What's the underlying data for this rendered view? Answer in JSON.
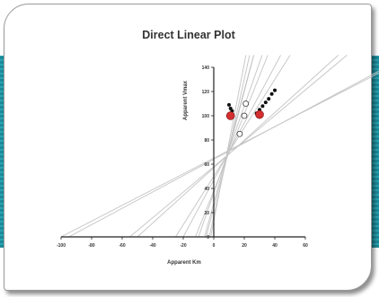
{
  "chart_data": {
    "type": "line",
    "title": "Direct Linear Plot",
    "xlabel": "Apparent Km",
    "ylabel": "Apparent Vmax",
    "xlim": [
      -100,
      60
    ],
    "ylim": [
      0,
      140
    ],
    "x_ticks": [
      -100,
      -80,
      -60,
      -40,
      -20,
      0,
      20,
      40,
      60
    ],
    "y_ticks": [
      {
        "v": 0,
        "label": "0"
      },
      {
        "v": 20,
        "label": "20"
      },
      {
        "v": 40,
        "label": "40"
      },
      {
        "v": 60,
        "label": "60"
      },
      {
        "v": 80,
        "label": "80"
      },
      {
        "v": 100,
        "label": "100"
      },
      {
        "v": 120,
        "label": "120"
      },
      {
        "v": 140,
        "label": "140"
      }
    ],
    "line_color": "#c4c4c4",
    "lines": [
      {
        "s": 100,
        "v": 65
      },
      {
        "s": 95,
        "v": 64
      },
      {
        "s": 55,
        "v": 58
      },
      {
        "s": 50,
        "v": 57
      },
      {
        "s": 25,
        "v": 50
      },
      {
        "s": 20,
        "v": 47
      },
      {
        "s": 12,
        "v": 38
      },
      {
        "s": 10,
        "v": 36
      },
      {
        "s": 6,
        "v": 28
      },
      {
        "s": 5,
        "v": 24
      },
      {
        "s": 3,
        "v": 17
      },
      {
        "s": 2,
        "v": 13
      }
    ],
    "black_points": [
      {
        "x": 10,
        "y": 109
      },
      {
        "x": 11,
        "y": 106
      },
      {
        "x": 12,
        "y": 104
      },
      {
        "x": 28,
        "y": 102
      },
      {
        "x": 30,
        "y": 105
      },
      {
        "x": 32,
        "y": 108
      },
      {
        "x": 34,
        "y": 111
      },
      {
        "x": 36,
        "y": 114
      },
      {
        "x": 38,
        "y": 118
      },
      {
        "x": 40,
        "y": 121
      }
    ],
    "red_points": [
      {
        "x": 11,
        "y": 100
      },
      {
        "x": 30,
        "y": 101
      }
    ],
    "open_points": [
      {
        "x": 20,
        "y": 100
      },
      {
        "x": 21,
        "y": 110
      },
      {
        "x": 17,
        "y": 85
      }
    ],
    "red_color": "#d32f2f"
  }
}
